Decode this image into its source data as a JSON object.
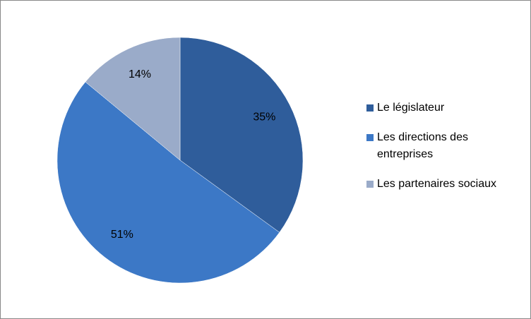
{
  "chart_data": {
    "type": "pie",
    "categories": [
      "Le législateur",
      "Les directions des entreprises",
      "Les partenaires sociaux"
    ],
    "values": [
      35,
      51,
      14
    ],
    "value_labels": [
      "35%",
      "51%",
      "14%"
    ],
    "colors": [
      "#2f5d9b",
      "#3c78c6",
      "#9aabc9"
    ],
    "legend": "right"
  }
}
